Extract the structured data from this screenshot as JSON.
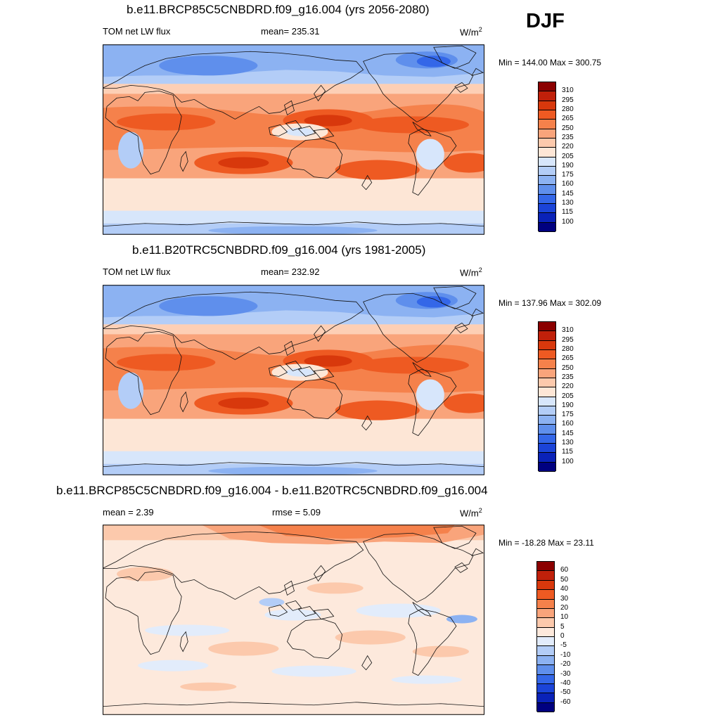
{
  "season": "DJF",
  "units_base": "W/m",
  "units_sup": "2",
  "panels": [
    {
      "id": "future",
      "title": "b.e11.BRCP85C5CNBDRD.f09_g16.004 (yrs 2056-2080)",
      "left_label": "TOM net LW flux",
      "stat": "mean= 235.31",
      "minmax": "Min = 144.00 Max = 300.75"
    },
    {
      "id": "historical",
      "title": "b.e11.B20TRC5CNBDRD.f09_g16.004 (yrs 1981-2005)",
      "left_label": "TOM net LW flux",
      "stat": "mean= 232.92",
      "minmax": "Min = 137.96 Max = 302.09"
    },
    {
      "id": "difference",
      "title": "b.e11.BRCP85C5CNBDRD.f09_g16.004 - b.e11.B20TRC5CNBDRD.f09_g16.004",
      "left_label": "mean =   2.39",
      "stat": "rmse =   5.09",
      "minmax": "Min = -18.28 Max =  23.11"
    }
  ],
  "colorbars": {
    "abs": {
      "labels": [
        "310",
        "295",
        "280",
        "265",
        "250",
        "235",
        "220",
        "205",
        "190",
        "175",
        "160",
        "145",
        "130",
        "115",
        "100"
      ],
      "colors": [
        "#8b0000",
        "#c0200a",
        "#d8380c",
        "#ee5a22",
        "#f5814b",
        "#f9a47b",
        "#fcc9ac",
        "#fde6d6",
        "#d7e6fb",
        "#b3cdf7",
        "#8cb2f2",
        "#5f8fec",
        "#3467e8",
        "#1b44d8",
        "#0a22b8",
        "#000080"
      ]
    },
    "diff": {
      "labels": [
        "60",
        "50",
        "40",
        "30",
        "20",
        "10",
        "5",
        "0",
        "-5",
        "-10",
        "-20",
        "-30",
        "-40",
        "-50",
        "-60"
      ],
      "colors": [
        "#8b0000",
        "#c0200a",
        "#d8380c",
        "#ee5a22",
        "#f5814b",
        "#f9a47b",
        "#fcc9ac",
        "#fde9dc",
        "#e2ecfb",
        "#b3cdf7",
        "#8cb2f2",
        "#5f8fec",
        "#3467e8",
        "#1b44d8",
        "#0a22b8",
        "#000080"
      ]
    }
  },
  "chart_data": [
    {
      "type": "heatmap",
      "title": "b.e11.BRCP85C5CNBDRD.f09_g16.004 (yrs 2056-2080)",
      "variable": "TOM net LW flux",
      "season": "DJF",
      "units": "W/m2",
      "mean": 235.31,
      "min": 144.0,
      "max": 300.75,
      "contour_levels": [
        100,
        115,
        130,
        145,
        160,
        175,
        190,
        205,
        220,
        235,
        250,
        265,
        280,
        295,
        310
      ],
      "xlim": [
        0,
        360
      ],
      "ylim": [
        -90,
        90
      ]
    },
    {
      "type": "heatmap",
      "title": "b.e11.B20TRC5CNBDRD.f09_g16.004 (yrs 1981-2005)",
      "variable": "TOM net LW flux",
      "season": "DJF",
      "units": "W/m2",
      "mean": 232.92,
      "min": 137.96,
      "max": 302.09,
      "contour_levels": [
        100,
        115,
        130,
        145,
        160,
        175,
        190,
        205,
        220,
        235,
        250,
        265,
        280,
        295,
        310
      ],
      "xlim": [
        0,
        360
      ],
      "ylim": [
        -90,
        90
      ]
    },
    {
      "type": "heatmap",
      "title": "b.e11.BRCP85C5CNBDRD.f09_g16.004 - b.e11.B20TRC5CNBDRD.f09_g16.004",
      "variable": "TOM net LW flux difference",
      "season": "DJF",
      "units": "W/m2",
      "mean": 2.39,
      "rmse": 5.09,
      "min": -18.28,
      "max": 23.11,
      "contour_levels": [
        -60,
        -50,
        -40,
        -30,
        -20,
        -10,
        -5,
        0,
        5,
        10,
        20,
        30,
        40,
        50,
        60
      ],
      "xlim": [
        0,
        360
      ],
      "ylim": [
        -90,
        90
      ]
    }
  ]
}
